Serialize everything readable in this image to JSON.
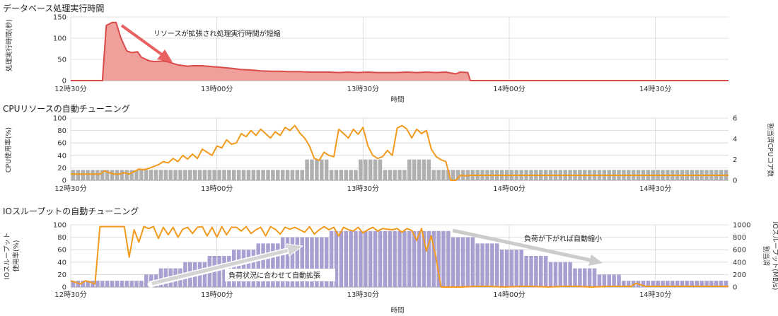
{
  "chart_data": [
    {
      "type": "area",
      "title": "データベース処理実行時間",
      "xlabel": "時間",
      "ylabel": "処理実行時間(秒)",
      "ylim": [
        0,
        150
      ],
      "y_ticks": [
        "150",
        "100",
        "50",
        "0"
      ],
      "x_ticks": [
        "12時30分",
        "13時00分",
        "13時30分",
        "14時00分",
        "14時30分"
      ],
      "xlim_minutes": [
        0,
        135
      ],
      "x_minutes": [
        0,
        2,
        4,
        6,
        8,
        10,
        12,
        14,
        16,
        18,
        20,
        22,
        24,
        26,
        28,
        30,
        32,
        34,
        36,
        38,
        40,
        42,
        44,
        46,
        48,
        50,
        52,
        54,
        56,
        58,
        60,
        62,
        64,
        66,
        68,
        70,
        72,
        74,
        76,
        78,
        80,
        82,
        84,
        86,
        88,
        90,
        92,
        94,
        96,
        98,
        100,
        102,
        104,
        106,
        108,
        110,
        112,
        114,
        116,
        118,
        120,
        122,
        124,
        126,
        128,
        130,
        132,
        134
      ],
      "values": [
        0,
        0,
        0,
        0,
        0,
        0,
        0,
        0,
        0,
        0,
        0,
        0,
        0,
        0,
        0,
        0,
        0,
        0,
        0,
        0,
        0,
        0,
        0,
        0,
        0,
        0,
        0,
        0,
        0,
        0,
        0,
        0,
        0,
        0,
        0,
        0,
        0,
        0,
        0,
        0,
        0,
        0,
        0,
        0,
        0,
        0,
        0,
        0,
        0,
        0,
        0,
        0,
        0,
        0,
        0,
        0,
        0,
        0,
        0,
        0,
        0,
        0,
        0,
        0,
        0,
        0,
        0,
        0
      ],
      "series": [
        {
          "x": [
            0,
            6.5,
            7.3,
            8.5,
            9.3,
            10.3,
            11.5,
            12.5,
            13.7,
            14.5,
            16,
            17,
            19,
            20,
            22,
            24,
            25,
            27,
            29,
            31,
            33,
            35,
            37,
            39,
            41,
            43,
            45,
            47,
            49,
            51,
            53,
            55,
            57,
            59,
            61,
            63,
            65,
            67,
            69,
            71,
            73,
            75,
            77,
            79,
            80,
            81.5,
            82,
            135
          ],
          "values": [
            0,
            0,
            130,
            137,
            137,
            100,
            70,
            66,
            68,
            55,
            47,
            45,
            46,
            44,
            37,
            34,
            35,
            35,
            33,
            31,
            29,
            26,
            25,
            23,
            22,
            22,
            21,
            21,
            20,
            20,
            20,
            19,
            20,
            19,
            20,
            19,
            19,
            19,
            20,
            19,
            20,
            19,
            20,
            16,
            20,
            19,
            0,
            0
          ]
        }
      ],
      "annotations": [
        "リソースが拡張され処理実行時間が短縮"
      ],
      "colors": {
        "line": "#d94a4a",
        "fill": "#f0a09a"
      }
    },
    {
      "type": "bar",
      "title": "CPUリソースの自動チューニング",
      "xlabel": "",
      "ylabel": "CPU使用率(%)",
      "y2label": "割当済CPUコア数",
      "ylim": [
        0,
        100
      ],
      "y2lim": [
        0,
        6
      ],
      "y_ticks": [
        "100",
        "80",
        "60",
        "40",
        "20",
        "0"
      ],
      "y2_ticks": [
        "6",
        "4",
        "2",
        "0"
      ],
      "x_ticks": [
        "12時30分",
        "13時00分",
        "13時30分",
        "14時00分",
        "14時30分"
      ],
      "xlim_minutes": [
        0,
        135
      ],
      "x_minutes": [
        0,
        1,
        2,
        3,
        4,
        5,
        6,
        7,
        8,
        9,
        10,
        11,
        12,
        13,
        14,
        15,
        16,
        17,
        18,
        19,
        20,
        21,
        22,
        23,
        24,
        25,
        26,
        27,
        28,
        29,
        30,
        31,
        32,
        33,
        34,
        35,
        36,
        37,
        38,
        39,
        40,
        41,
        42,
        43,
        44,
        45,
        46,
        47,
        48,
        49,
        50,
        51,
        52,
        53,
        54,
        55,
        56,
        57,
        58,
        59,
        60,
        61,
        62,
        63,
        64,
        65,
        66,
        67,
        68,
        69,
        70,
        71,
        72,
        73,
        74,
        75,
        76,
        77,
        78,
        79,
        80,
        81,
        82,
        83,
        84,
        85,
        86,
        87,
        88,
        89,
        90,
        91,
        92,
        93,
        94,
        95,
        96,
        97,
        98,
        99,
        100,
        101,
        102,
        103,
        104,
        105,
        106,
        107,
        108,
        109,
        110,
        111,
        112,
        113,
        114,
        115,
        116,
        117,
        118,
        119,
        120,
        121,
        122,
        123,
        124,
        125,
        126,
        127,
        128,
        129,
        130,
        131,
        132,
        133,
        134
      ],
      "series": [
        {
          "axis": "right",
          "values": [
            1,
            1,
            1,
            1,
            1,
            1,
            1,
            1,
            1,
            1,
            1,
            1,
            1,
            1,
            1,
            1,
            1,
            1,
            1,
            1,
            1,
            1,
            1,
            1,
            1,
            1,
            1,
            1,
            1,
            1,
            1,
            1,
            1,
            1,
            1,
            1,
            1,
            1,
            1,
            1,
            1,
            1,
            1,
            1,
            1,
            1,
            1,
            1,
            2,
            2,
            2,
            2,
            2,
            1,
            1,
            1,
            1,
            1,
            1,
            2,
            2,
            2,
            2,
            2,
            1,
            1,
            1,
            1,
            1,
            2,
            2,
            2,
            2,
            2,
            1,
            1,
            1,
            1,
            1,
            1,
            1,
            1,
            1,
            1,
            1,
            1,
            1,
            1,
            1,
            1,
            1,
            1,
            1,
            1,
            1,
            1,
            1,
            1,
            1,
            1,
            1,
            1,
            1,
            1,
            1,
            1,
            1,
            1,
            1,
            1,
            1,
            1,
            1,
            1,
            1,
            1,
            1,
            1,
            1,
            1,
            1,
            1,
            1,
            1,
            1,
            1,
            1,
            1,
            1,
            1,
            1,
            1,
            1,
            1,
            1
          ]
        },
        {
          "axis": "left",
          "x": [
            0,
            4,
            6,
            7,
            8,
            9,
            10,
            11,
            12,
            13,
            14,
            15,
            16,
            17,
            18,
            19,
            20,
            21,
            22,
            23,
            24,
            25,
            26,
            27,
            28,
            29,
            30,
            31,
            32,
            33,
            34,
            35,
            36,
            37,
            38,
            39,
            40,
            41,
            42,
            43,
            44,
            45,
            46,
            47,
            48,
            49,
            50,
            51,
            52,
            53,
            54,
            55,
            56,
            57,
            58,
            59,
            60,
            61,
            62,
            63,
            64,
            65,
            66,
            67,
            68,
            69,
            70,
            71,
            72,
            73,
            74,
            75,
            76,
            77,
            78,
            79,
            80,
            81,
            82,
            83,
            85,
            88,
            90,
            135
          ],
          "values": [
            10,
            10,
            10,
            15,
            12,
            10,
            10,
            12,
            10,
            14,
            18,
            17,
            19,
            22,
            25,
            30,
            28,
            35,
            30,
            40,
            34,
            42,
            35,
            50,
            45,
            40,
            55,
            52,
            65,
            58,
            60,
            75,
            70,
            80,
            72,
            82,
            75,
            68,
            78,
            72,
            85,
            80,
            88,
            76,
            68,
            55,
            35,
            32,
            45,
            40,
            38,
            82,
            75,
            68,
            82,
            74,
            85,
            55,
            40,
            35,
            38,
            48,
            40,
            84,
            88,
            82,
            68,
            82,
            75,
            80,
            50,
            38,
            33,
            30,
            0,
            0,
            8,
            7,
            8,
            8,
            8,
            8,
            8,
            8
          ]
        }
      ],
      "colors": {
        "bar": "#b0b0b0",
        "line": "#f29a1e"
      }
    },
    {
      "type": "bar",
      "title": "IOスループットの自動チューニング",
      "xlabel": "時間",
      "ylabel": "IOスループット使用率(%)",
      "ylabel_lines": [
        "IOスループット",
        "使用率(%)"
      ],
      "y2label": "割当済IOスループット(MB/s)",
      "y2label_lines": [
        "割当済",
        "IOスループット(MB/s)"
      ],
      "ylim": [
        0,
        100
      ],
      "y2lim": [
        0,
        1000
      ],
      "y_ticks": [
        "100",
        "80",
        "60",
        "40",
        "20",
        "0"
      ],
      "y2_ticks": [
        "1000",
        "800",
        "600",
        "400",
        "200",
        "0"
      ],
      "x_ticks": [
        "12時30分",
        "13時00分",
        "13時30分",
        "14時00分",
        "14時30分"
      ],
      "xlim_minutes": [
        0,
        135
      ],
      "x_minutes": [
        0,
        1,
        2,
        3,
        4,
        5,
        6,
        7,
        8,
        9,
        10,
        11,
        12,
        13,
        14,
        15,
        16,
        17,
        18,
        19,
        20,
        21,
        22,
        23,
        24,
        25,
        26,
        27,
        28,
        29,
        30,
        31,
        32,
        33,
        34,
        35,
        36,
        37,
        38,
        39,
        40,
        41,
        42,
        43,
        44,
        45,
        46,
        47,
        48,
        49,
        50,
        51,
        52,
        53,
        54,
        55,
        56,
        57,
        58,
        59,
        60,
        61,
        62,
        63,
        64,
        65,
        66,
        67,
        68,
        69,
        70,
        71,
        72,
        73,
        74,
        75,
        76,
        77,
        78,
        79,
        80,
        81,
        82,
        83,
        84,
        85,
        86,
        87,
        88,
        89,
        90,
        91,
        92,
        93,
        94,
        95,
        96,
        97,
        98,
        99,
        100,
        101,
        102,
        103,
        104,
        105,
        106,
        107,
        108,
        109,
        110,
        111,
        112,
        113,
        114,
        115,
        116,
        117,
        118,
        119,
        120,
        121,
        122,
        123,
        124,
        125,
        126,
        127,
        128,
        129,
        130,
        131,
        132,
        133,
        134
      ],
      "series": [
        {
          "axis": "right",
          "values": [
            100,
            100,
            100,
            100,
            100,
            100,
            100,
            100,
            100,
            100,
            100,
            100,
            100,
            100,
            100,
            200,
            200,
            200,
            300,
            300,
            300,
            300,
            300,
            400,
            400,
            400,
            400,
            400,
            500,
            500,
            500,
            500,
            500,
            600,
            600,
            600,
            600,
            600,
            700,
            700,
            700,
            700,
            700,
            800,
            800,
            800,
            800,
            800,
            800,
            800,
            800,
            800,
            800,
            900,
            900,
            900,
            900,
            900,
            900,
            900,
            900,
            900,
            900,
            900,
            900,
            900,
            900,
            900,
            900,
            900,
            900,
            900,
            900,
            900,
            900,
            900,
            900,
            900,
            800,
            800,
            800,
            800,
            800,
            700,
            700,
            700,
            700,
            700,
            600,
            600,
            600,
            600,
            600,
            500,
            500,
            500,
            500,
            500,
            400,
            400,
            400,
            400,
            400,
            300,
            300,
            300,
            300,
            300,
            200,
            200,
            200,
            200,
            200,
            100,
            100,
            100,
            100,
            100,
            100,
            100,
            100,
            100,
            100,
            100,
            100,
            100,
            100,
            100,
            100,
            100,
            100,
            100,
            100,
            100,
            100
          ]
        },
        {
          "axis": "left",
          "x": [
            0,
            2,
            3,
            4,
            5,
            6,
            7,
            8,
            9,
            10,
            11,
            12,
            13,
            14,
            15,
            16,
            17,
            18,
            19,
            20,
            21,
            22,
            23,
            24,
            25,
            26,
            27,
            28,
            29,
            30,
            31,
            32,
            33,
            34,
            35,
            36,
            37,
            38,
            39,
            40,
            41,
            42,
            43,
            44,
            45,
            46,
            47,
            48,
            49,
            50,
            51,
            52,
            53,
            54,
            55,
            56,
            57,
            58,
            59,
            60,
            61,
            62,
            63,
            64,
            65,
            66,
            67,
            68,
            69,
            70,
            71,
            72,
            73,
            74,
            75,
            76,
            77,
            80,
            83,
            86,
            89,
            92,
            95,
            98,
            101,
            104,
            107,
            110,
            113,
            115,
            116,
            118,
            120,
            122,
            124,
            126,
            128,
            130,
            132,
            135
          ],
          "values": [
            10,
            5,
            10,
            8,
            5,
            97,
            97,
            97,
            97,
            97,
            97,
            48,
            92,
            72,
            97,
            94,
            97,
            78,
            96,
            84,
            96,
            80,
            93,
            96,
            86,
            96,
            97,
            82,
            96,
            80,
            97,
            84,
            96,
            96,
            90,
            97,
            86,
            92,
            96,
            82,
            97,
            93,
            85,
            96,
            93,
            96,
            92,
            88,
            97,
            85,
            92,
            97,
            92,
            96,
            82,
            96,
            92,
            90,
            96,
            87,
            92,
            96,
            90,
            94,
            93,
            92,
            94,
            88,
            94,
            91,
            75,
            94,
            58,
            82,
            45,
            0,
            0,
            0,
            1,
            1,
            0,
            1,
            1,
            0,
            1,
            1,
            0,
            1,
            1,
            1,
            6,
            1,
            1,
            1,
            1,
            1,
            1,
            1,
            1,
            1
          ]
        }
      ],
      "annotations": [
        "負荷状況に合わせて自動拡張",
        "負荷が下がれば自動縮小"
      ],
      "colors": {
        "bar": "#a99fd1",
        "line": "#f29a1e"
      }
    }
  ]
}
